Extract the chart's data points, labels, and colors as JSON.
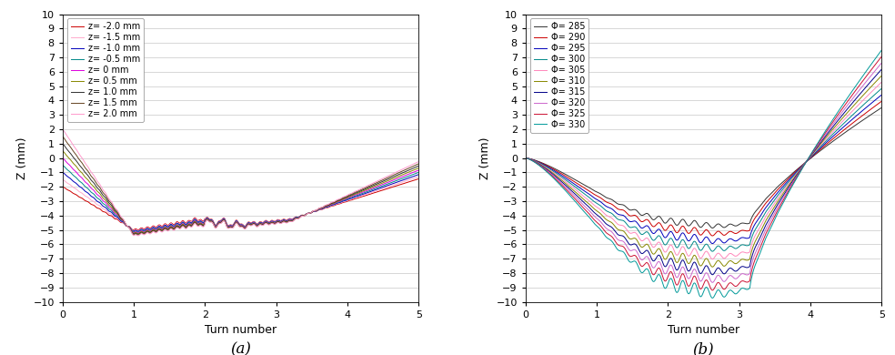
{
  "panel_a": {
    "title": "(a)",
    "xlabel": "Turn number",
    "ylabel": "Z (mm)",
    "xlim": [
      0,
      5
    ],
    "ylim": [
      -10,
      10
    ],
    "yticks": [
      -10,
      -9,
      -8,
      -7,
      -6,
      -5,
      -4,
      -3,
      -2,
      -1,
      0,
      1,
      2,
      3,
      4,
      5,
      6,
      7,
      8,
      9,
      10
    ],
    "xticks": [
      0,
      1,
      2,
      3,
      4,
      5
    ],
    "legend_labels": [
      "z= -2.0 mm",
      "z= -1.5 mm",
      "z= -1.0 mm",
      "z= -0.5 mm",
      "z= 0 mm",
      "z= 0.5 mm",
      "z= 1.0 mm",
      "z= 1.5 mm",
      "z= 2.0 mm"
    ],
    "z_offsets": [
      -2.0,
      -1.5,
      -1.0,
      -0.5,
      0.0,
      0.5,
      1.0,
      1.5,
      2.0
    ],
    "colors": [
      "#cc0000",
      "#ffaacc",
      "#0000bb",
      "#008888",
      "#dd00dd",
      "#888800",
      "#303030",
      "#664422",
      "#ff99cc"
    ]
  },
  "panel_b": {
    "title": "(b)",
    "xlabel": "Turn number",
    "ylabel": "Z (mm)",
    "xlim": [
      0,
      5
    ],
    "ylim": [
      -10,
      10
    ],
    "yticks": [
      -10,
      -9,
      -8,
      -7,
      -6,
      -5,
      -4,
      -3,
      -2,
      -1,
      0,
      1,
      2,
      3,
      4,
      5,
      6,
      7,
      8,
      9,
      10
    ],
    "xticks": [
      0,
      1,
      2,
      3,
      4,
      5
    ],
    "legend_labels": [
      "Φ= 285",
      "Φ= 290",
      "Φ= 295",
      "Φ= 300",
      "Φ= 305",
      "Φ= 310",
      "Φ= 315",
      "Φ= 320",
      "Φ= 325",
      "Φ= 330"
    ],
    "phi_offsets": [
      285,
      290,
      295,
      300,
      305,
      310,
      315,
      320,
      325,
      330
    ],
    "colors": [
      "#333333",
      "#cc0000",
      "#0000bb",
      "#008888",
      "#ff88bb",
      "#888800",
      "#000088",
      "#cc66cc",
      "#cc1133",
      "#009999"
    ]
  },
  "background_color": "#ffffff",
  "grid_color": "#c8c8c8",
  "font_size_label": 9,
  "font_size_tick": 8,
  "font_size_legend": 7,
  "font_size_title": 12,
  "line_width": 0.7
}
